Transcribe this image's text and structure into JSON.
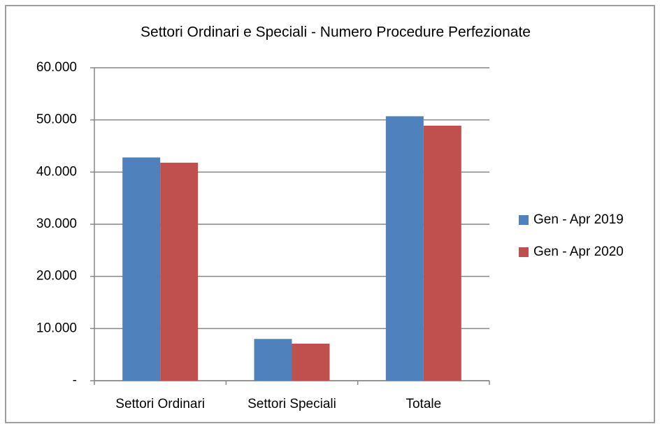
{
  "chart_data": {
    "type": "bar",
    "title": "Settori Ordinari e Speciali - Numero Procedure Perfezionate",
    "categories": [
      "Settori Ordinari",
      "Settori Speciali",
      "Totale"
    ],
    "series": [
      {
        "name": "Gen - Apr 2019",
        "color": "#4f81bd",
        "values": [
          42800,
          8000,
          50700
        ]
      },
      {
        "name": "Gen - Apr 2020",
        "color": "#c0504d",
        "values": [
          41800,
          7100,
          48900
        ]
      }
    ],
    "ylim": [
      0,
      60000
    ],
    "yticks": [
      {
        "value": 0,
        "label": "-"
      },
      {
        "value": 10000,
        "label": "10.000"
      },
      {
        "value": 20000,
        "label": "20.000"
      },
      {
        "value": 30000,
        "label": "30.000"
      },
      {
        "value": 40000,
        "label": "40.000"
      },
      {
        "value": 50000,
        "label": "50.000"
      },
      {
        "value": 60000,
        "label": "60.000"
      }
    ],
    "grid": true,
    "legend": "right"
  }
}
